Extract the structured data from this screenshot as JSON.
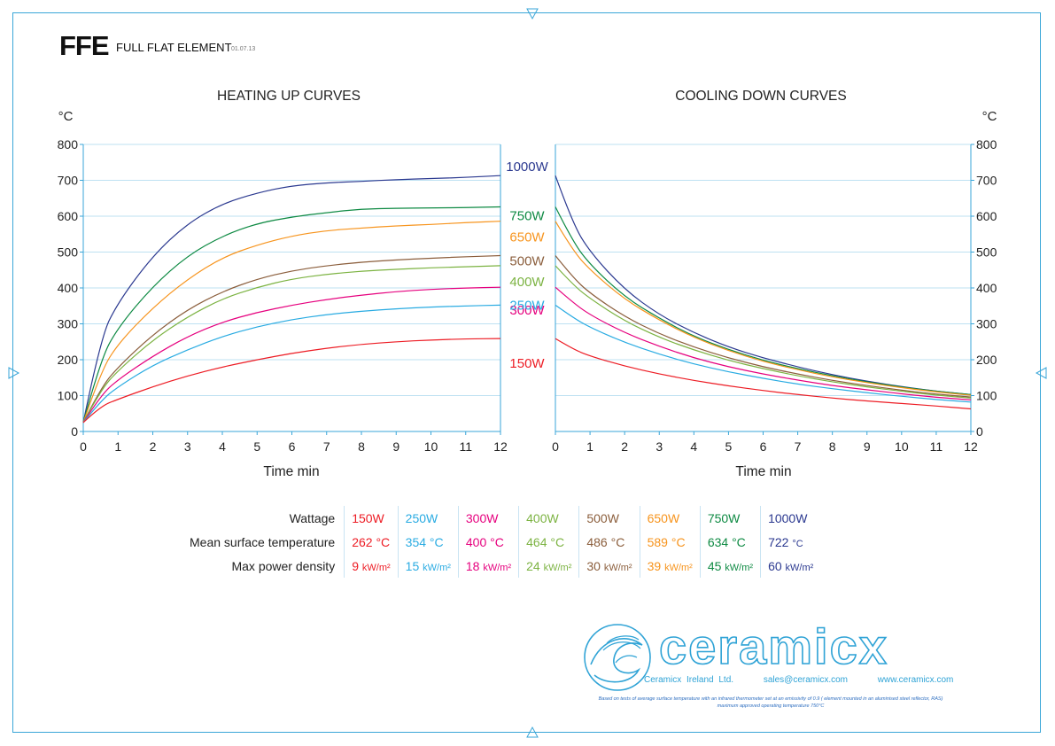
{
  "header": {
    "code": "FFE",
    "name": "FULL FLAT ELEMENT",
    "date": "01.07.13"
  },
  "chart_data": [
    {
      "type": "line",
      "title": "HEATING UP CURVES",
      "xlabel": "Time min",
      "ylabel": "°C",
      "xlim": [
        0,
        12
      ],
      "ylim": [
        0,
        800
      ],
      "xticks": [
        "0",
        "1",
        "2",
        "3",
        "4",
        "5",
        "6",
        "7",
        "8",
        "9",
        "10",
        "11",
        "12"
      ],
      "yticks": [
        "0",
        "100",
        "200",
        "300",
        "400",
        "500",
        "600",
        "700",
        "800"
      ],
      "grid": "horizontal",
      "x": [
        0,
        0.5,
        1,
        2,
        3,
        4,
        5,
        6,
        7,
        8,
        9,
        10,
        11,
        12
      ],
      "series": [
        {
          "name": "1000W",
          "color": "#2b3990",
          "values": [
            25,
            260,
            360,
            490,
            580,
            635,
            665,
            685,
            693,
            697,
            702,
            705,
            708,
            713
          ]
        },
        {
          "name": "750W",
          "color": "#0e8a43",
          "values": [
            25,
            200,
            290,
            405,
            490,
            545,
            580,
            598,
            610,
            620,
            622,
            623,
            624,
            626
          ]
        },
        {
          "name": "650W",
          "color": "#f7941d",
          "values": [
            25,
            165,
            245,
            345,
            425,
            485,
            520,
            545,
            560,
            567,
            573,
            577,
            582,
            586
          ]
        },
        {
          "name": "500W",
          "color": "#8b5e3c",
          "values": [
            25,
            120,
            180,
            270,
            340,
            390,
            425,
            448,
            462,
            472,
            478,
            483,
            487,
            490
          ]
        },
        {
          "name": "400W",
          "color": "#7cb342",
          "values": [
            25,
            115,
            170,
            255,
            320,
            370,
            402,
            425,
            438,
            447,
            452,
            456,
            459,
            462
          ]
        },
        {
          "name": "300W",
          "color": "#e6007e",
          "values": [
            25,
            100,
            145,
            210,
            265,
            305,
            332,
            352,
            368,
            380,
            390,
            396,
            400,
            402
          ]
        },
        {
          "name": "250W",
          "color": "#29abe2",
          "values": [
            25,
            85,
            125,
            185,
            228,
            265,
            292,
            312,
            326,
            335,
            342,
            347,
            350,
            352
          ]
        },
        {
          "name": "150W",
          "color": "#ed1c24",
          "values": [
            25,
            70,
            90,
            125,
            155,
            180,
            200,
            218,
            232,
            243,
            250,
            255,
            258,
            259
          ]
        }
      ]
    },
    {
      "type": "line",
      "title": "COOLING DOWN CURVES",
      "xlabel": "Time min",
      "ylabel": "°C",
      "xlim": [
        0,
        12
      ],
      "ylim": [
        0,
        800
      ],
      "xticks": [
        "0",
        "1",
        "2",
        "3",
        "4",
        "5",
        "6",
        "7",
        "8",
        "9",
        "10",
        "11",
        "12"
      ],
      "yticks": [
        "0",
        "100",
        "200",
        "300",
        "400",
        "500",
        "600",
        "700",
        "800"
      ],
      "grid": "horizontal",
      "x": [
        0,
        0.5,
        1,
        2,
        3,
        4,
        5,
        6,
        7,
        8,
        9,
        10,
        11,
        12
      ],
      "series": [
        {
          "name": "1000W",
          "color": "#2b3990",
          "values": [
            713,
            580,
            500,
            395,
            325,
            275,
            235,
            205,
            180,
            158,
            140,
            125,
            112,
            103
          ]
        },
        {
          "name": "750W",
          "color": "#0e8a43",
          "values": [
            626,
            530,
            465,
            375,
            315,
            265,
            228,
            198,
            175,
            155,
            138,
            124,
            112,
            103
          ]
        },
        {
          "name": "650W",
          "color": "#f7941d",
          "values": [
            586,
            505,
            450,
            368,
            310,
            262,
            225,
            195,
            172,
            152,
            136,
            122,
            110,
            101
          ]
        },
        {
          "name": "500W",
          "color": "#8b5e3c",
          "values": [
            490,
            430,
            385,
            320,
            272,
            235,
            205,
            180,
            160,
            142,
            128,
            115,
            104,
            96
          ]
        },
        {
          "name": "400W",
          "color": "#7cb342",
          "values": [
            462,
            410,
            370,
            308,
            262,
            227,
            198,
            175,
            155,
            138,
            124,
            112,
            101,
            93
          ]
        },
        {
          "name": "300W",
          "color": "#e6007e",
          "values": [
            402,
            360,
            325,
            275,
            237,
            205,
            180,
            160,
            143,
            128,
            116,
            105,
            95,
            88
          ]
        },
        {
          "name": "250W",
          "color": "#29abe2",
          "values": [
            352,
            318,
            290,
            248,
            215,
            188,
            166,
            148,
            132,
            119,
            108,
            98,
            89,
            82
          ]
        },
        {
          "name": "150W",
          "color": "#ed1c24",
          "values": [
            259,
            230,
            210,
            182,
            160,
            142,
            127,
            114,
            103,
            93,
            85,
            78,
            71,
            63
          ]
        }
      ]
    }
  ],
  "legend_table": {
    "labels": {
      "wattage": "Wattage",
      "temp": "Mean surface temperature",
      "density": "Max power density"
    },
    "columns": [
      {
        "watt": "150W",
        "temp": "262",
        "temp_unit": "°C",
        "density": "9",
        "density_unit": "kW/m²",
        "color": "#ed1c24"
      },
      {
        "watt": "250W",
        "temp": "354",
        "temp_unit": "°C",
        "density": "15",
        "density_unit": "kW/m²",
        "color": "#29abe2"
      },
      {
        "watt": "300W",
        "temp": "400",
        "temp_unit": "°C",
        "density": "18",
        "density_unit": "kW/m²",
        "color": "#e6007e"
      },
      {
        "watt": "400W",
        "temp": "464",
        "temp_unit": "°C",
        "density": "24",
        "density_unit": "kW/m²",
        "color": "#7cb342"
      },
      {
        "watt": "500W",
        "temp": "486",
        "temp_unit": "°C",
        "density": "30",
        "density_unit": "kW/m²",
        "color": "#8b5e3c"
      },
      {
        "watt": "650W",
        "temp": "589",
        "temp_unit": "°C",
        "density": "39",
        "density_unit": "kW/m²",
        "color": "#f7941d"
      },
      {
        "watt": "750W",
        "temp": "634",
        "temp_unit": "°C",
        "density": "45",
        "density_unit": "kW/m²",
        "color": "#0e8a43"
      },
      {
        "watt": "1000W",
        "temp": "722",
        "temp_unit": "°C",
        "density": "60",
        "density_unit": "kW/m²",
        "color": "#2b3990"
      }
    ]
  },
  "brand": {
    "name": "ceramicx",
    "company": "Ceramicx Ireland Ltd.",
    "email": "sales@ceramicx.com",
    "web": "www.ceramicx.com",
    "accent": "#2fa3d6"
  },
  "footnote": {
    "line1": "Based on tests of average surface temperature with an infrared thermometer set at an emissivity of 0.9 ( element mounted in an aluminised steel reflector, RAS)",
    "line2": "maximum approved operating temperature 750°C"
  }
}
